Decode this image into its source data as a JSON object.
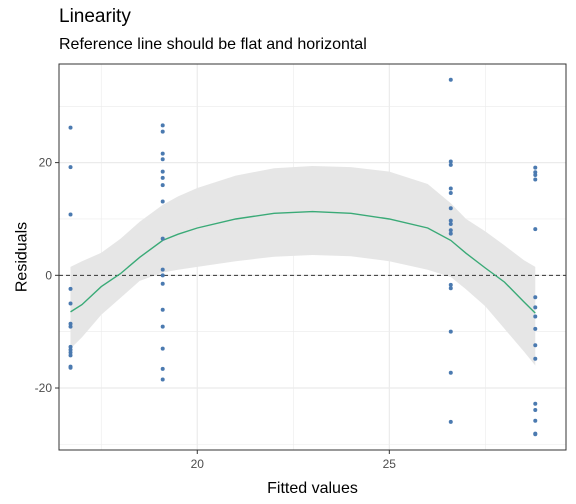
{
  "chart_data": {
    "type": "scatter",
    "title": "Linearity",
    "subtitle": "Reference line should be flat and horizontal",
    "xlabel": "Fitted values",
    "ylabel": "Residuals",
    "xlim": [
      16.4,
      29.6
    ],
    "ylim": [
      -31,
      37.5
    ],
    "x_ticks": [
      20,
      25
    ],
    "y_ticks": [
      -20,
      0,
      20
    ],
    "grid": true,
    "reference_line_y": 0,
    "colors": {
      "points": "#4b7ab0",
      "smooth": "#3aaa77",
      "band": "#e5e5e5",
      "reference": "#333333",
      "grid": "#ebebeb"
    },
    "points": [
      {
        "x": 16.7,
        "y": 26.2
      },
      {
        "x": 16.7,
        "y": 19.2
      },
      {
        "x": 16.7,
        "y": 10.8
      },
      {
        "x": 16.7,
        "y": -2.4
      },
      {
        "x": 16.7,
        "y": -5.0
      },
      {
        "x": 16.7,
        "y": -8.6
      },
      {
        "x": 16.7,
        "y": -9.1
      },
      {
        "x": 16.7,
        "y": -12.7
      },
      {
        "x": 16.7,
        "y": -13.2
      },
      {
        "x": 16.7,
        "y": -13.7
      },
      {
        "x": 16.7,
        "y": -14.2
      },
      {
        "x": 16.7,
        "y": -16.2
      },
      {
        "x": 16.7,
        "y": -16.4
      },
      {
        "x": 19.1,
        "y": 26.6
      },
      {
        "x": 19.1,
        "y": 25.5
      },
      {
        "x": 19.1,
        "y": 21.6
      },
      {
        "x": 19.1,
        "y": 20.6
      },
      {
        "x": 19.1,
        "y": 18.4
      },
      {
        "x": 19.1,
        "y": 17.3
      },
      {
        "x": 19.1,
        "y": 16.0
      },
      {
        "x": 19.1,
        "y": 13.1
      },
      {
        "x": 19.1,
        "y": 6.5
      },
      {
        "x": 19.1,
        "y": 1.0
      },
      {
        "x": 19.1,
        "y": 0.0
      },
      {
        "x": 19.1,
        "y": -1.5
      },
      {
        "x": 19.1,
        "y": -6.1
      },
      {
        "x": 19.1,
        "y": -9.1
      },
      {
        "x": 19.1,
        "y": -13.0
      },
      {
        "x": 19.1,
        "y": -16.6
      },
      {
        "x": 19.1,
        "y": -18.5
      },
      {
        "x": 26.6,
        "y": 34.7
      },
      {
        "x": 26.6,
        "y": 20.2
      },
      {
        "x": 26.6,
        "y": 19.6
      },
      {
        "x": 26.6,
        "y": 15.4
      },
      {
        "x": 26.6,
        "y": 14.6
      },
      {
        "x": 26.6,
        "y": 11.9
      },
      {
        "x": 26.6,
        "y": 9.7
      },
      {
        "x": 26.6,
        "y": 9.1
      },
      {
        "x": 26.6,
        "y": 8.0
      },
      {
        "x": 26.6,
        "y": 7.4
      },
      {
        "x": 26.6,
        "y": -1.7
      },
      {
        "x": 26.6,
        "y": -2.3
      },
      {
        "x": 26.6,
        "y": -10.0
      },
      {
        "x": 26.6,
        "y": -17.3
      },
      {
        "x": 26.6,
        "y": -26.0
      },
      {
        "x": 28.8,
        "y": 19.1
      },
      {
        "x": 28.8,
        "y": 18.3
      },
      {
        "x": 28.8,
        "y": 17.8
      },
      {
        "x": 28.8,
        "y": 17.0
      },
      {
        "x": 28.8,
        "y": 8.2
      },
      {
        "x": 28.8,
        "y": -3.9
      },
      {
        "x": 28.8,
        "y": -5.7
      },
      {
        "x": 28.8,
        "y": -7.3
      },
      {
        "x": 28.8,
        "y": -9.5
      },
      {
        "x": 28.8,
        "y": -12.4
      },
      {
        "x": 28.8,
        "y": -14.8
      },
      {
        "x": 28.8,
        "y": -22.8
      },
      {
        "x": 28.8,
        "y": -23.9
      },
      {
        "x": 28.8,
        "y": -25.8
      },
      {
        "x": 28.8,
        "y": -28.1
      },
      {
        "x": 28.8,
        "y": -28.2
      }
    ],
    "smooth_line": [
      {
        "x": 16.7,
        "y": -6.5
      },
      {
        "x": 17.0,
        "y": -5.2
      },
      {
        "x": 17.5,
        "y": -2.0
      },
      {
        "x": 18.0,
        "y": 0.3
      },
      {
        "x": 18.5,
        "y": 3.2
      },
      {
        "x": 19.1,
        "y": 6.2
      },
      {
        "x": 19.5,
        "y": 7.3
      },
      {
        "x": 20.0,
        "y": 8.4
      },
      {
        "x": 21.0,
        "y": 10.0
      },
      {
        "x": 22.0,
        "y": 11.0
      },
      {
        "x": 23.0,
        "y": 11.3
      },
      {
        "x": 24.0,
        "y": 11.0
      },
      {
        "x": 25.0,
        "y": 10.0
      },
      {
        "x": 26.0,
        "y": 8.4
      },
      {
        "x": 26.6,
        "y": 6.2
      },
      {
        "x": 27.0,
        "y": 3.9
      },
      {
        "x": 27.5,
        "y": 1.3
      },
      {
        "x": 28.0,
        "y": -1.2
      },
      {
        "x": 28.5,
        "y": -4.7
      },
      {
        "x": 28.8,
        "y": -6.7
      }
    ],
    "confidence_band": [
      {
        "x": 16.7,
        "lower": -13.0,
        "upper": 1.5
      },
      {
        "x": 17.0,
        "lower": -11.0,
        "upper": 2.5
      },
      {
        "x": 17.5,
        "lower": -7.0,
        "upper": 4.0
      },
      {
        "x": 18.0,
        "lower": -4.0,
        "upper": 6.5
      },
      {
        "x": 18.5,
        "lower": -1.0,
        "upper": 9.5
      },
      {
        "x": 19.1,
        "lower": 0.5,
        "upper": 12.5
      },
      {
        "x": 19.5,
        "lower": 1.0,
        "upper": 14.0
      },
      {
        "x": 20.0,
        "lower": 1.5,
        "upper": 15.5
      },
      {
        "x": 21.0,
        "lower": 2.5,
        "upper": 17.7
      },
      {
        "x": 22.0,
        "lower": 3.3,
        "upper": 19.0
      },
      {
        "x": 23.0,
        "lower": 3.6,
        "upper": 19.4
      },
      {
        "x": 24.0,
        "lower": 3.4,
        "upper": 19.2
      },
      {
        "x": 25.0,
        "lower": 2.5,
        "upper": 18.4
      },
      {
        "x": 26.0,
        "lower": 1.0,
        "upper": 16.2
      },
      {
        "x": 26.6,
        "lower": -0.3,
        "upper": 12.8
      },
      {
        "x": 27.0,
        "lower": -2.5,
        "upper": 10.0
      },
      {
        "x": 27.5,
        "lower": -5.5,
        "upper": 7.8
      },
      {
        "x": 28.0,
        "lower": -9.5,
        "upper": 5.3
      },
      {
        "x": 28.5,
        "lower": -13.5,
        "upper": 2.7
      },
      {
        "x": 28.8,
        "lower": -16.0,
        "upper": 1.5
      }
    ]
  }
}
